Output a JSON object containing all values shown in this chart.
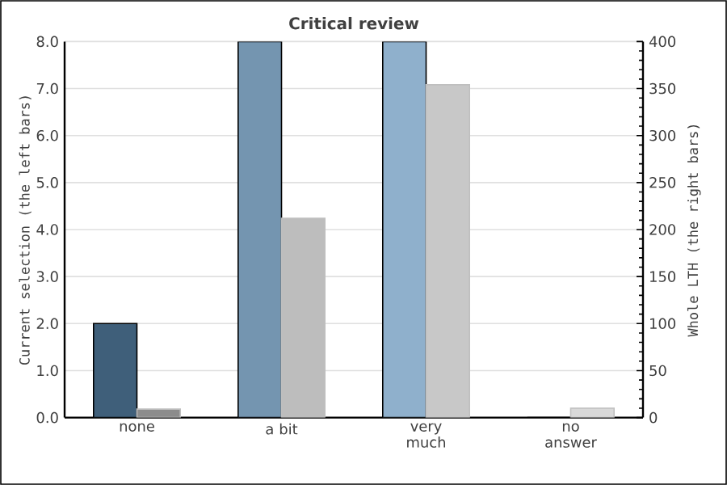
{
  "chart_data": {
    "type": "bar",
    "title": "Critical review",
    "ylabel": "Current selection (the left bars)",
    "y2label": "Whole LTH (the right bars)",
    "categories": [
      "none",
      "a bit",
      "very much",
      "no answer"
    ],
    "series": [
      {
        "colors": [
          "#3f5f7a",
          "#7495b0",
          "#8fb0cc",
          "#8fb0cc"
        ],
        "values": [
          2,
          8,
          8,
          0
        ]
      },
      {
        "axis": "y2",
        "colors": [
          "#8c8c8c",
          "#bdbdbd",
          "#c8c8c8",
          "#d9d9d9"
        ],
        "values": [
          9,
          212,
          354,
          10
        ]
      }
    ],
    "ylim": [
      0,
      8
    ],
    "yticks": [
      {
        "value": 0,
        "label": "0.0"
      },
      {
        "value": 1,
        "label": "1.0"
      },
      {
        "value": 2,
        "label": "2.0"
      },
      {
        "value": 3,
        "label": "3.0"
      },
      {
        "value": 4,
        "label": "4.0"
      },
      {
        "value": 5,
        "label": "5.0"
      },
      {
        "value": 6,
        "label": "6.0"
      },
      {
        "value": 7,
        "label": "7.0"
      },
      {
        "value": 8,
        "label": "8.0"
      }
    ],
    "y2lim": [
      0,
      400
    ],
    "y2ticks": [
      0,
      50,
      100,
      150,
      200,
      250,
      300,
      350,
      400
    ],
    "grid": "y"
  }
}
